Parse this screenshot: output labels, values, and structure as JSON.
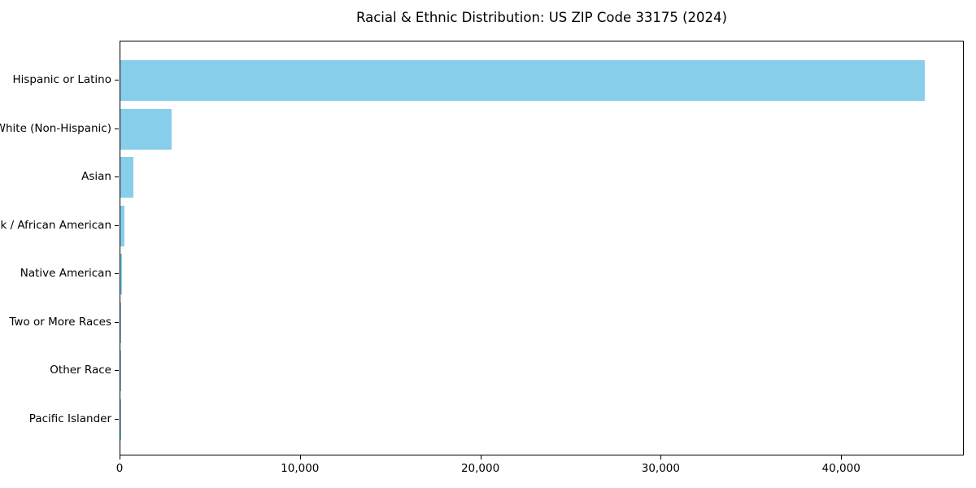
{
  "chart_data": {
    "type": "bar",
    "orientation": "horizontal",
    "title": "Racial & Ethnic Distribution: US ZIP Code 33175 (2024)",
    "categories": [
      "Hispanic or Latino",
      "White (Non-Hispanic)",
      "Asian",
      "Black / African American",
      "Native American",
      "Two or More Races",
      "Other Race",
      "Pacific Islander"
    ],
    "values": [
      44580,
      2840,
      720,
      230,
      80,
      25,
      10,
      5
    ],
    "bar_color": "#87CEEB",
    "xlabel": "",
    "ylabel": "",
    "xlim": [
      0,
      46800
    ],
    "x_ticks": [
      0,
      10000,
      20000,
      30000,
      40000
    ],
    "x_tick_labels": [
      "0",
      "10,000",
      "20,000",
      "30,000",
      "40,000"
    ],
    "grid": false,
    "legend": "none",
    "plot_background": "#ffffff",
    "spine_color": "#000000"
  }
}
